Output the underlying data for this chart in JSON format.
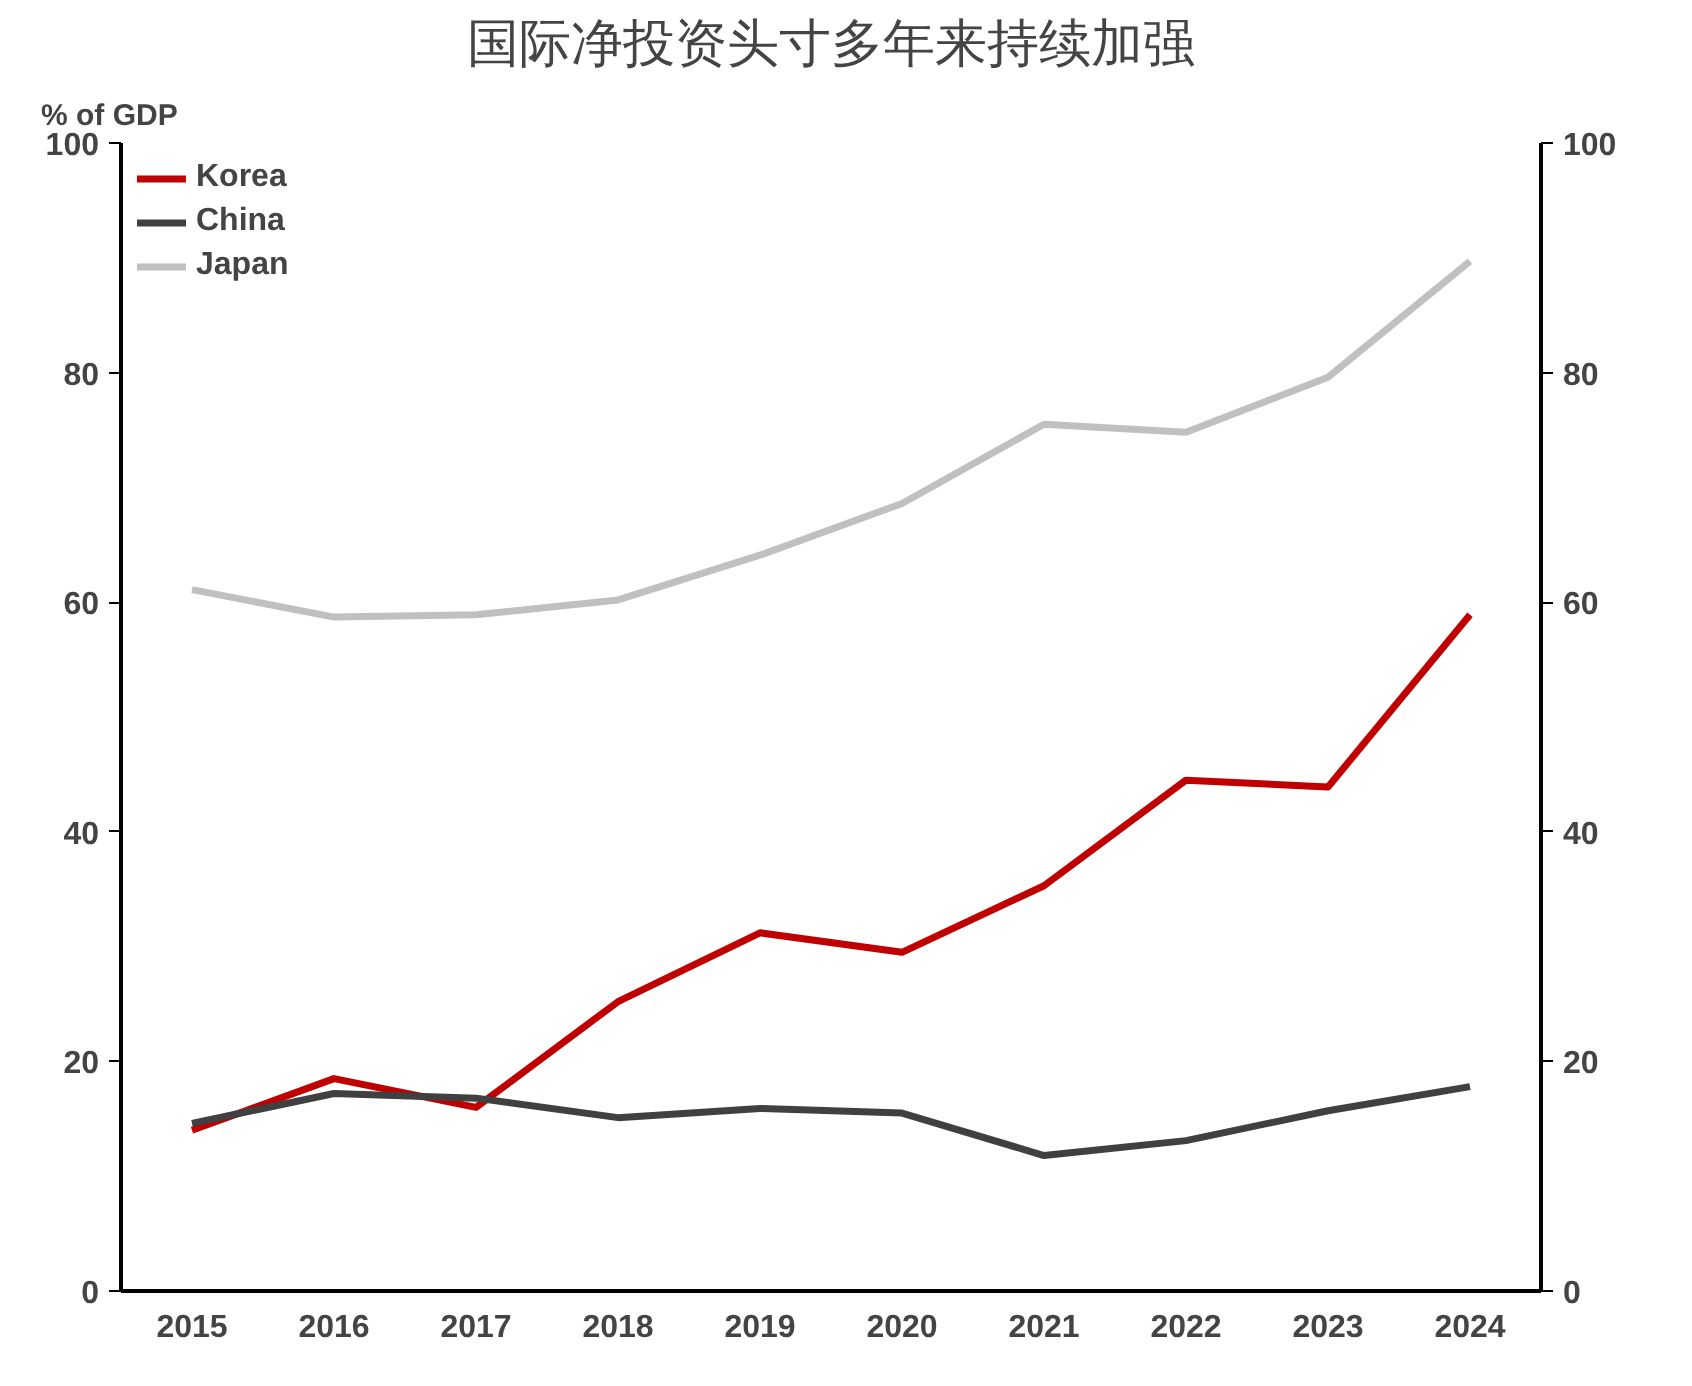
{
  "chart_data": {
    "type": "line",
    "title": "国际净投资头寸多年来持续加强",
    "ylabel": "% of GDP",
    "categories": [
      "2015",
      "2016",
      "2017",
      "2018",
      "2019",
      "2020",
      "2021",
      "2022",
      "2023",
      "2024"
    ],
    "series": [
      {
        "name": "Korea",
        "color": "#c00000",
        "values": [
          14.0,
          18.5,
          16.0,
          25.2,
          31.2,
          29.5,
          35.3,
          44.5,
          43.9,
          58.9
        ]
      },
      {
        "name": "China",
        "color": "#404040",
        "values": [
          14.6,
          17.2,
          16.8,
          15.1,
          15.9,
          15.5,
          11.8,
          13.1,
          15.7,
          17.8
        ]
      },
      {
        "name": "Japan",
        "color": "#c0c0c0",
        "values": [
          61.1,
          58.7,
          58.9,
          60.2,
          64.1,
          68.6,
          75.5,
          74.8,
          79.6,
          89.7
        ]
      }
    ],
    "ylim": [
      0,
      100
    ],
    "yticks": [
      0,
      20,
      40,
      60,
      80,
      100
    ],
    "y2lim": [
      0,
      100
    ],
    "y2ticks": [
      0,
      20,
      40,
      60,
      80,
      100
    ],
    "grid": false,
    "legend": "top left",
    "marker": "none",
    "line_style": "solid"
  }
}
